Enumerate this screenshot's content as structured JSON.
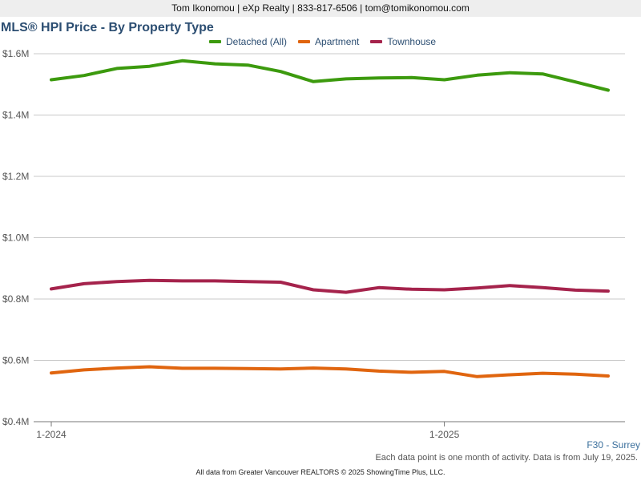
{
  "header": {
    "contact": "Tom Ikonomou | eXp Realty | 833-817-6506 | tom@tomikonomou.com"
  },
  "chart_data": {
    "type": "line",
    "title": "MLS® HPI Price - By Property Type",
    "xlabel": "",
    "ylabel": "",
    "x": [
      "2024-01",
      "2024-02",
      "2024-03",
      "2024-04",
      "2024-05",
      "2024-06",
      "2024-07",
      "2024-08",
      "2024-09",
      "2024-10",
      "2024-11",
      "2024-12",
      "2025-01",
      "2025-02",
      "2025-03",
      "2025-04",
      "2025-05",
      "2025-06"
    ],
    "x_tick_labels": [
      {
        "index": 0,
        "label": "1-2024"
      },
      {
        "index": 12,
        "label": "1-2025"
      }
    ],
    "ylim": [
      400000,
      1600000
    ],
    "y_ticks": [
      {
        "value": 400000,
        "label": "$0.4M"
      },
      {
        "value": 600000,
        "label": "$0.6M"
      },
      {
        "value": 800000,
        "label": "$0.8M"
      },
      {
        "value": 1000000,
        "label": "$1.0M"
      },
      {
        "value": 1200000,
        "label": "$1.2M"
      },
      {
        "value": 1400000,
        "label": "$1.4M"
      },
      {
        "value": 1600000,
        "label": "$1.6M"
      }
    ],
    "grid": "horizontal",
    "legend_position": "top",
    "series": [
      {
        "name": "Detached (All)",
        "color": "#3c9a0e",
        "values": [
          1515000,
          1529000,
          1552000,
          1559000,
          1577000,
          1567000,
          1563000,
          1542000,
          1509000,
          1518000,
          1521000,
          1522000,
          1515000,
          1530000,
          1538000,
          1534000,
          1508000,
          1481000
        ]
      },
      {
        "name": "Apartment",
        "color": "#e0650f",
        "values": [
          559000,
          569000,
          575000,
          579000,
          574000,
          574000,
          573000,
          572000,
          575000,
          572000,
          565000,
          561000,
          564000,
          547000,
          553000,
          558000,
          555000,
          549000
        ]
      },
      {
        "name": "Townhouse",
        "color": "#a5234c",
        "values": [
          833000,
          850000,
          857000,
          861000,
          859000,
          859000,
          857000,
          855000,
          830000,
          822000,
          837000,
          832000,
          830000,
          836000,
          844000,
          837000,
          829000,
          826000
        ]
      }
    ]
  },
  "region_label": "F30 - Surrey",
  "footnote": "Each data point is one month of activity. Data is from July 19, 2025.",
  "source": "All data from Greater Vancouver REALTORS © 2025 ShowingTime Plus, LLC."
}
